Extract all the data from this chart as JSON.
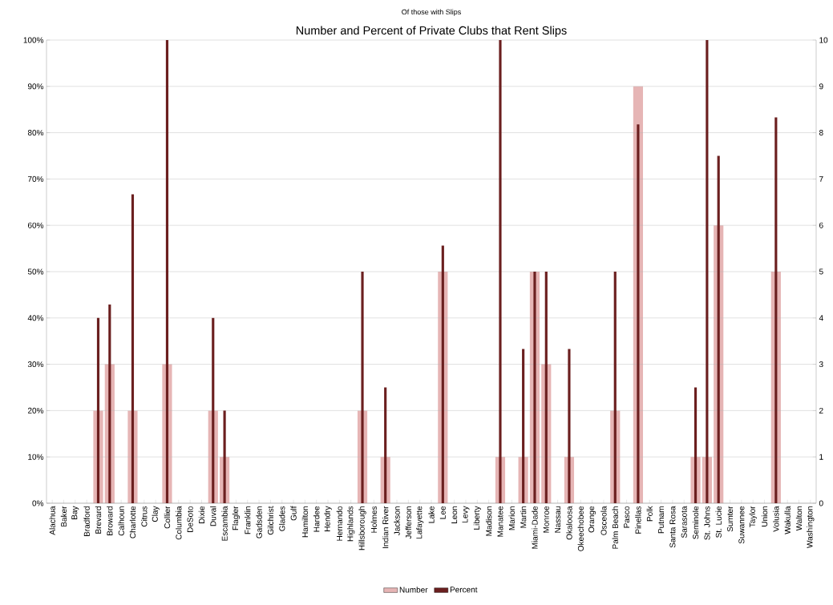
{
  "chart_data": {
    "type": "bar",
    "subtitle": "Of those with Slips",
    "title": "Number and Percent of Private Clubs that Rent Slips",
    "categories": [
      "Alachua",
      "Baker",
      "Bay",
      "Bradford",
      "Brevard",
      "Broward",
      "Calhoun",
      "Charlotte",
      "Citrus",
      "Clay",
      "Collier",
      "Columbia",
      "DeSoto",
      "Dixie",
      "Duval",
      "Escambia",
      "Flagler",
      "Franklin",
      "Gadsden",
      "Gilchrist",
      "Glades",
      "Gulf",
      "Hamilton",
      "Hardee",
      "Hendry",
      "Hernando",
      "Highlands",
      "Hillsborough",
      "Holmes",
      "Indian River",
      "Jackson",
      "Jefferson",
      "Lafayette",
      "Lake",
      "Lee",
      "Leon",
      "Levy",
      "Liberty",
      "Madison",
      "Manatee",
      "Marion",
      "Martin",
      "Miami-Dade",
      "Monroe",
      "Nassau",
      "Okaloosa",
      "Okeechobee",
      "Orange",
      "Osceola",
      "Palm Beach",
      "Pasco",
      "Pinellas",
      "Polk",
      "Putnam",
      "Santa Rosa",
      "Sarasota",
      "Seminole",
      "St. Johns",
      "St. Lucie",
      "Sumter",
      "Suwannee",
      "Taylor",
      "Union",
      "Volusia",
      "Wakulla",
      "Walton",
      "Washington"
    ],
    "series": [
      {
        "name": "Number",
        "color": "#e6b5b5",
        "axis": "y2",
        "values": [
          0,
          0,
          0,
          0,
          2,
          3,
          0,
          2,
          0,
          0,
          3,
          0,
          0,
          0,
          2,
          1,
          0,
          0,
          0,
          0,
          0,
          0,
          0,
          0,
          0,
          0,
          0,
          2,
          0,
          1,
          0,
          0,
          0,
          0,
          5,
          0,
          0,
          0,
          0,
          1,
          0,
          1,
          5,
          3,
          0,
          1,
          0,
          0,
          0,
          2,
          0,
          9,
          0,
          0,
          0,
          0,
          1,
          1,
          6,
          0,
          0,
          0,
          0,
          5,
          0,
          0,
          0
        ]
      },
      {
        "name": "Percent",
        "color": "#6b1f1f",
        "values": [
          0,
          0,
          0,
          0,
          40,
          42.9,
          0,
          66.7,
          0,
          0,
          100,
          0,
          0,
          0,
          40,
          20,
          0,
          0,
          0,
          0,
          0,
          0,
          0,
          0,
          0,
          0,
          0,
          50,
          0,
          25,
          0,
          0,
          0,
          0,
          55.6,
          0,
          0,
          0,
          0,
          100,
          0,
          33.3,
          50,
          50,
          0,
          33.3,
          0,
          0,
          0,
          50,
          0,
          81.8,
          0,
          0,
          0,
          0,
          25,
          100,
          75,
          0,
          0,
          0,
          0,
          83.3,
          0,
          0,
          0
        ]
      }
    ],
    "ylim": [
      0,
      100
    ],
    "yticks": [
      {
        "value": 0,
        "label": "0%"
      },
      {
        "value": 10,
        "label": "10%"
      },
      {
        "value": 20,
        "label": "20%"
      },
      {
        "value": 30,
        "label": "30%"
      },
      {
        "value": 40,
        "label": "40%"
      },
      {
        "value": 50,
        "label": "50%"
      },
      {
        "value": 60,
        "label": "60%"
      },
      {
        "value": 70,
        "label": "70%"
      },
      {
        "value": 80,
        "label": "80%"
      },
      {
        "value": 90,
        "label": "90%"
      },
      {
        "value": 100,
        "label": "100%"
      }
    ],
    "y2lim": [
      0,
      10
    ],
    "y2ticks": [
      0,
      1,
      2,
      3,
      4,
      5,
      6,
      7,
      8,
      9,
      10
    ],
    "grid": "y",
    "legend": "bottom"
  }
}
